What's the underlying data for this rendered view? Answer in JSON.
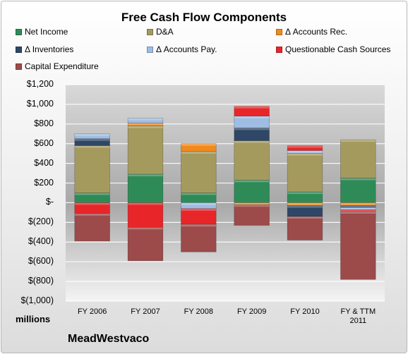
{
  "chart_data": {
    "type": "bar",
    "stacked": true,
    "title": "Free Cash Flow Components",
    "categories": [
      "FY 2006",
      "FY 2007",
      "FY 2008",
      "FY 2009",
      "FY 2010",
      "FY & TTM 2011"
    ],
    "y_tick_labels": [
      "$1,200",
      "$1,000",
      "$800",
      "$600",
      "$400",
      "$200",
      "$-",
      "$(200)",
      "$(400)",
      "$(600)",
      "$(800)",
      "$(1,000)"
    ],
    "ylabel": "millions",
    "ylim": [
      -1000,
      1200
    ],
    "grid": true,
    "legend_position": "top",
    "series": [
      {
        "name": "Net Income",
        "color": "#2e8b57",
        "values": [
          100,
          290,
          100,
          230,
          110,
          250
        ]
      },
      {
        "name": "D&A",
        "color": "#a59a5e",
        "values": [
          480,
          490,
          420,
          400,
          390,
          390
        ]
      },
      {
        "name": "Δ Accounts Rec.",
        "color": "#f08a1e",
        "values": [
          0,
          30,
          80,
          -20,
          -30,
          -30
        ]
      },
      {
        "name": "Δ Inventories",
        "color": "#2f4766",
        "values": [
          70,
          0,
          0,
          130,
          -110,
          -20
        ]
      },
      {
        "name": "Δ Accounts Pay.",
        "color": "#9fbde2",
        "values": [
          50,
          50,
          -60,
          120,
          30,
          -20
        ]
      },
      {
        "name": "Questionable Cash Sources",
        "color": "#e8262a",
        "values": [
          -110,
          -250,
          -160,
          100,
          50,
          -20
        ]
      },
      {
        "name": "Capital Expenditure",
        "color": "#9c4a4a",
        "values": [
          -280,
          -340,
          -280,
          -210,
          -240,
          -690
        ]
      }
    ]
  },
  "company": "MeadWestvaco"
}
